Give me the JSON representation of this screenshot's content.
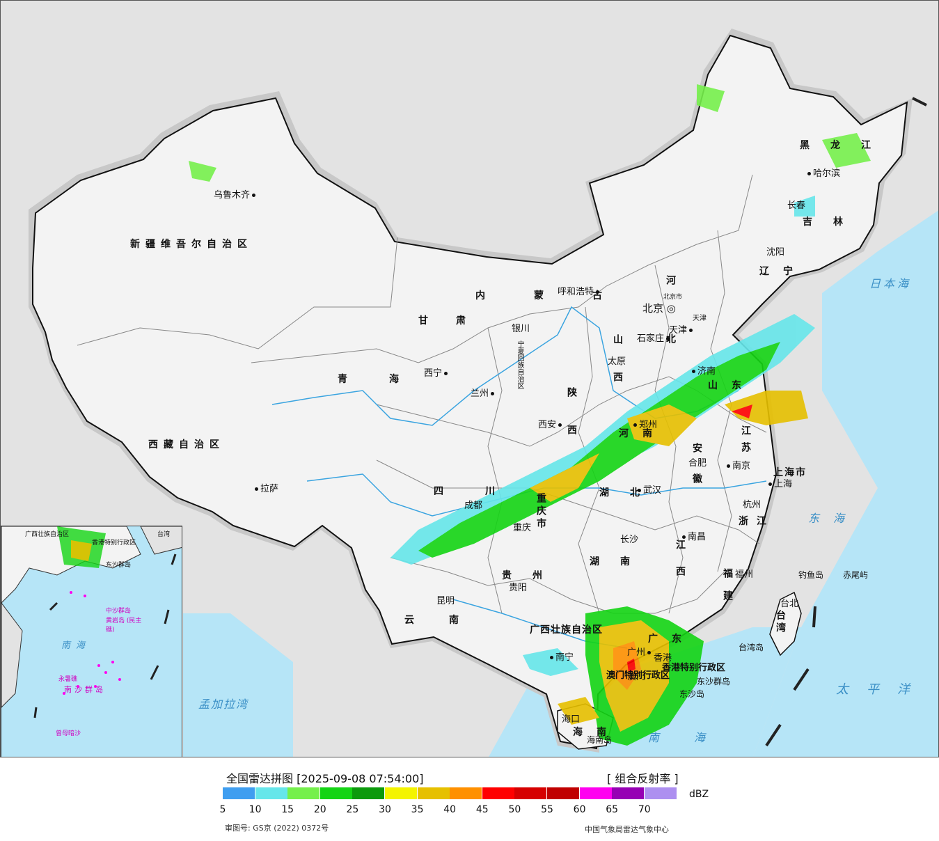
{
  "map": {
    "provinces": [
      {
        "name": "新疆维吾尔自治区"
      },
      {
        "name": "西藏自治区"
      },
      {
        "name": "青海"
      },
      {
        "name": "甘肃"
      },
      {
        "name": "内蒙古"
      },
      {
        "name": "四川"
      },
      {
        "name": "云南"
      },
      {
        "name": "贵州"
      },
      {
        "name": "广西壮族自治区"
      },
      {
        "name": "黑龙江"
      },
      {
        "name": "吉林"
      },
      {
        "name": "辽宁"
      },
      {
        "name": "河北"
      },
      {
        "name": "山西"
      },
      {
        "name": "陕西"
      },
      {
        "name": "河南"
      },
      {
        "name": "湖北"
      },
      {
        "name": "湖南"
      },
      {
        "name": "江西"
      },
      {
        "name": "福建"
      },
      {
        "name": "浙江"
      },
      {
        "name": "江苏"
      },
      {
        "name": "安徽"
      },
      {
        "name": "山东"
      },
      {
        "name": "广东"
      },
      {
        "name": "海南"
      },
      {
        "name": "台湾"
      },
      {
        "name": "重庆市"
      },
      {
        "name": "上海市"
      },
      {
        "name": "北京市"
      },
      {
        "name": "天津"
      },
      {
        "name": "宁夏回族自治区"
      },
      {
        "name": "香港特别行政区"
      },
      {
        "name": "澳门特别行政区"
      }
    ],
    "cities": [
      {
        "name": "乌鲁木齐"
      },
      {
        "name": "拉萨"
      },
      {
        "name": "西宁"
      },
      {
        "name": "兰州"
      },
      {
        "name": "银川"
      },
      {
        "name": "呼和浩特"
      },
      {
        "name": "北京"
      },
      {
        "name": "天津"
      },
      {
        "name": "石家庄"
      },
      {
        "name": "太原"
      },
      {
        "name": "济南"
      },
      {
        "name": "郑州"
      },
      {
        "name": "西安"
      },
      {
        "name": "成都"
      },
      {
        "name": "重庆"
      },
      {
        "name": "贵阳"
      },
      {
        "name": "昆明"
      },
      {
        "name": "南宁"
      },
      {
        "name": "广州"
      },
      {
        "name": "香港"
      },
      {
        "name": "澳门"
      },
      {
        "name": "海口"
      },
      {
        "name": "长沙"
      },
      {
        "name": "武汉"
      },
      {
        "name": "南昌"
      },
      {
        "name": "合肥"
      },
      {
        "name": "南京"
      },
      {
        "name": "上海"
      },
      {
        "name": "杭州"
      },
      {
        "name": "福州"
      },
      {
        "name": "台北"
      },
      {
        "name": "沈阳"
      },
      {
        "name": "长春"
      },
      {
        "name": "哈尔滨"
      }
    ],
    "seas": [
      {
        "name": "日本海"
      },
      {
        "name": "东海"
      },
      {
        "name": "太平洋"
      },
      {
        "name": "南海"
      },
      {
        "name": "孟加拉湾"
      }
    ],
    "islands": [
      {
        "name": "钓鱼岛"
      },
      {
        "name": "赤尾屿"
      },
      {
        "name": "台湾岛"
      },
      {
        "name": "东沙群岛"
      },
      {
        "name": "东沙岛"
      },
      {
        "name": "海南岛"
      }
    ],
    "inset": {
      "labels": [
        {
          "name": "南海"
        },
        {
          "name": "中沙群岛"
        },
        {
          "name": "黄岩岛 (民主礁)"
        },
        {
          "name": "永暑礁"
        },
        {
          "name": "南沙群岛"
        },
        {
          "name": "曾母暗沙"
        },
        {
          "name": "东沙群岛"
        },
        {
          "name": "台湾"
        },
        {
          "name": "广西壮族自治区"
        },
        {
          "name": "香港特别行政区"
        }
      ]
    }
  },
  "legend": {
    "title": "全国雷达拼图 [2025-09-08 07:54:00]",
    "product": "[ 组合反射率 ]",
    "unit": "dBZ",
    "colors": [
      "#3f9ef0",
      "#66e6ea",
      "#75f04b",
      "#14d414",
      "#0c9a0c",
      "#f4f400",
      "#e6c000",
      "#ff9000",
      "#ff0000",
      "#d60000",
      "#c00000",
      "#ff00f0",
      "#9600b4",
      "#ad8ff0"
    ],
    "ticks": [
      "5",
      "10",
      "15",
      "20",
      "25",
      "30",
      "35",
      "40",
      "45",
      "50",
      "55",
      "60",
      "65",
      "70"
    ],
    "approval": "审图号: GS京 (2022) 0372号",
    "source": "中国气象局雷达气象中心"
  }
}
